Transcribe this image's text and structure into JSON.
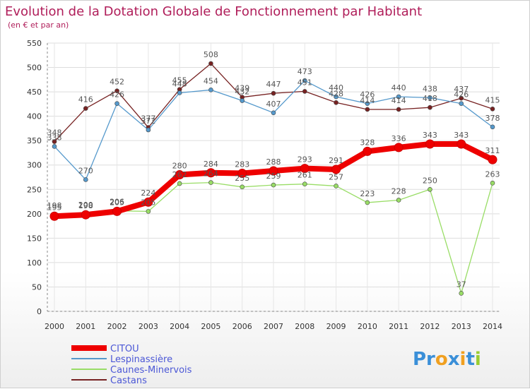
{
  "chart_data": {
    "type": "line",
    "title": "Evolution de la Dotation Globale de Fonctionnement par Habitant",
    "subtitle": "(en € et par an)",
    "x": [
      "2000",
      "2001",
      "2002",
      "2003",
      "2004",
      "2005",
      "2006",
      "2007",
      "2008",
      "2009",
      "2010",
      "2011",
      "2012",
      "2013",
      "2014"
    ],
    "ylim": [
      0,
      550
    ],
    "yticks": [
      "0",
      "50",
      "100",
      "150",
      "200",
      "250",
      "300",
      "350",
      "400",
      "450",
      "500",
      "550"
    ],
    "grid": true,
    "series": [
      {
        "name": "CITOU",
        "color": "#ee0000",
        "values": [
          195,
          198,
          205,
          224,
          280,
          284,
          283,
          288,
          293,
          291,
          328,
          336,
          343,
          343,
          311
        ],
        "labels": [
          "195",
          "198",
          "205",
          "224",
          "280",
          "284",
          "283",
          "288",
          "293",
          "291",
          "328",
          "336",
          "343",
          "343",
          "311"
        ]
      },
      {
        "name": "Lespinassière",
        "color": "#5599cc",
        "values": [
          338,
          270,
          426,
          372,
          448,
          454,
          432,
          407,
          473,
          440,
          426,
          440,
          438,
          426,
          378
        ],
        "labels": [
          "338",
          "270",
          "426",
          "372",
          "448",
          "454",
          "432",
          "407",
          "473",
          "440",
          "426",
          "440",
          "438",
          "426",
          "378"
        ]
      },
      {
        "name": "Caunes-Minervois",
        "color": "#99dd66",
        "values": [
          198,
          200,
          206,
          205,
          262,
          264,
          255,
          259,
          261,
          257,
          223,
          228,
          250,
          37,
          263
        ],
        "labels": [
          "198",
          "200",
          "206",
          "205",
          "262",
          "264",
          "255",
          "259",
          "261",
          "257",
          "223",
          "228",
          "250",
          "37",
          "263"
        ]
      },
      {
        "name": "Castans",
        "color": "#772222",
        "values": [
          348,
          416,
          452,
          377,
          455,
          508,
          439,
          447,
          451,
          428,
          414,
          414,
          418,
          437,
          415
        ],
        "labels": [
          "348",
          "416",
          "452",
          "377",
          "455",
          "508",
          "439",
          "447",
          "451",
          "428",
          "414",
          "414",
          "418",
          "437",
          "415"
        ]
      }
    ],
    "legend_position": "bottom-left"
  },
  "logo": {
    "parts": [
      "Pr",
      "o",
      "x",
      "i",
      "t",
      "i"
    ],
    "colors": [
      "#3a8fd8",
      "#f0a020",
      "#3a8fd8",
      "#f0a020",
      "#3a8fd8",
      "#9acd32"
    ]
  }
}
